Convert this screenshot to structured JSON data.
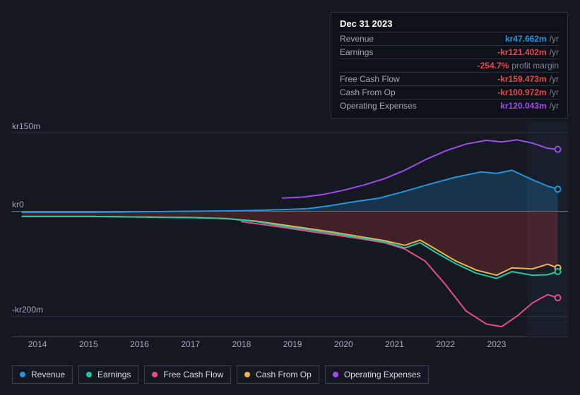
{
  "colors": {
    "background": "#131821",
    "tooltip_bg": "#0e1117",
    "border": "#2b3242",
    "grid": "#3a4254",
    "text_muted": "#a0a8b8",
    "revenue": "#2394df",
    "earnings": "#20c9a5",
    "fcf": "#e94a8a",
    "cfo": "#f0b44a",
    "opex": "#a04af0",
    "negative": "#e8474c",
    "area_blue": "#2394df",
    "area_red": "#b83a3a"
  },
  "tooltip": {
    "date": "Dec 31 2023",
    "rows": [
      {
        "label": "Revenue",
        "value": "kr47.662m",
        "color": "#2394df",
        "suffix": "/yr"
      },
      {
        "label": "Earnings",
        "value": "-kr121.402m",
        "color": "#e8474c",
        "suffix": "/yr"
      },
      {
        "label": "",
        "value": "-254.7%",
        "color": "#e8474c",
        "suffix": "profit margin"
      },
      {
        "label": "Free Cash Flow",
        "value": "-kr159.473m",
        "color": "#e8474c",
        "suffix": "/yr"
      },
      {
        "label": "Cash From Op",
        "value": "-kr100.972m",
        "color": "#e8474c",
        "suffix": "/yr"
      },
      {
        "label": "Operating Expenses",
        "value": "kr120.043m",
        "color": "#a04af0",
        "suffix": "/yr"
      }
    ]
  },
  "chart": {
    "type": "line",
    "ylim": [
      -240,
      170
    ],
    "yticks": [
      {
        "v": 150,
        "label": "kr150m"
      },
      {
        "v": 0,
        "label": "kr0"
      },
      {
        "v": -200,
        "label": "-kr200m"
      }
    ],
    "xlim": [
      2013.5,
      2024.4
    ],
    "xticks": [
      2014,
      2015,
      2016,
      2017,
      2018,
      2019,
      2020,
      2021,
      2022,
      2023
    ],
    "shade_from": 2023.6,
    "marker_x": 2024.2,
    "series": {
      "revenue": {
        "color": "#2394df",
        "width": 2,
        "points": [
          [
            2013.7,
            -2
          ],
          [
            2015,
            -2
          ],
          [
            2016,
            -1
          ],
          [
            2017,
            0
          ],
          [
            2018,
            1
          ],
          [
            2018.8,
            3
          ],
          [
            2019.3,
            5
          ],
          [
            2019.7,
            10
          ],
          [
            2020.2,
            18
          ],
          [
            2020.7,
            25
          ],
          [
            2021.2,
            38
          ],
          [
            2021.7,
            52
          ],
          [
            2022.2,
            65
          ],
          [
            2022.7,
            75
          ],
          [
            2023,
            72
          ],
          [
            2023.3,
            78
          ],
          [
            2023.7,
            60
          ],
          [
            2024,
            48
          ],
          [
            2024.2,
            42
          ]
        ]
      },
      "earnings": {
        "color": "#20c9a5",
        "width": 2,
        "points": [
          [
            2013.7,
            -10
          ],
          [
            2015,
            -10
          ],
          [
            2016,
            -11
          ],
          [
            2017,
            -12
          ],
          [
            2017.7,
            -14
          ],
          [
            2018.3,
            -20
          ],
          [
            2018.8,
            -28
          ],
          [
            2019.3,
            -35
          ],
          [
            2019.8,
            -42
          ],
          [
            2020.3,
            -50
          ],
          [
            2020.8,
            -58
          ],
          [
            2021.2,
            -70
          ],
          [
            2021.5,
            -60
          ],
          [
            2021.8,
            -78
          ],
          [
            2022.2,
            -100
          ],
          [
            2022.6,
            -118
          ],
          [
            2023,
            -128
          ],
          [
            2023.3,
            -115
          ],
          [
            2023.7,
            -122
          ],
          [
            2024,
            -121
          ],
          [
            2024.2,
            -115
          ]
        ]
      },
      "fcf": {
        "color": "#e94a8a",
        "width": 2,
        "points": [
          [
            2018,
            -20
          ],
          [
            2018.4,
            -25
          ],
          [
            2018.9,
            -32
          ],
          [
            2019.3,
            -38
          ],
          [
            2019.8,
            -45
          ],
          [
            2020.3,
            -52
          ],
          [
            2020.8,
            -60
          ],
          [
            2021.2,
            -72
          ],
          [
            2021.6,
            -95
          ],
          [
            2022,
            -140
          ],
          [
            2022.4,
            -190
          ],
          [
            2022.8,
            -215
          ],
          [
            2023.1,
            -220
          ],
          [
            2023.4,
            -200
          ],
          [
            2023.7,
            -175
          ],
          [
            2024,
            -159
          ],
          [
            2024.2,
            -165
          ]
        ]
      },
      "cfo": {
        "color": "#f0b44a",
        "width": 2,
        "points": [
          [
            2013.7,
            -10
          ],
          [
            2015,
            -10
          ],
          [
            2016,
            -11
          ],
          [
            2017,
            -12
          ],
          [
            2017.7,
            -14
          ],
          [
            2018.3,
            -19
          ],
          [
            2018.8,
            -26
          ],
          [
            2019.3,
            -33
          ],
          [
            2019.8,
            -40
          ],
          [
            2020.3,
            -48
          ],
          [
            2020.8,
            -56
          ],
          [
            2021.2,
            -65
          ],
          [
            2021.5,
            -55
          ],
          [
            2021.8,
            -72
          ],
          [
            2022.2,
            -95
          ],
          [
            2022.6,
            -112
          ],
          [
            2023,
            -122
          ],
          [
            2023.3,
            -108
          ],
          [
            2023.7,
            -110
          ],
          [
            2024,
            -101
          ],
          [
            2024.2,
            -108
          ]
        ]
      },
      "opex": {
        "color": "#a04af0",
        "width": 2,
        "points": [
          [
            2018.8,
            25
          ],
          [
            2019.2,
            27
          ],
          [
            2019.6,
            32
          ],
          [
            2020,
            40
          ],
          [
            2020.4,
            50
          ],
          [
            2020.8,
            62
          ],
          [
            2021.2,
            78
          ],
          [
            2021.6,
            98
          ],
          [
            2022,
            115
          ],
          [
            2022.4,
            128
          ],
          [
            2022.8,
            135
          ],
          [
            2023.1,
            132
          ],
          [
            2023.4,
            136
          ],
          [
            2023.7,
            130
          ],
          [
            2024,
            120
          ],
          [
            2024.2,
            118
          ]
        ]
      }
    },
    "end_markers": [
      {
        "color": "#a04af0",
        "v": 118
      },
      {
        "color": "#2394df",
        "v": 42
      },
      {
        "color": "#f0b44a",
        "v": -108
      },
      {
        "color": "#20c9a5",
        "v": -115
      },
      {
        "color": "#e94a8a",
        "v": -165
      }
    ]
  },
  "legend": [
    {
      "label": "Revenue",
      "color": "#2394df"
    },
    {
      "label": "Earnings",
      "color": "#20c9a5"
    },
    {
      "label": "Free Cash Flow",
      "color": "#e94a8a"
    },
    {
      "label": "Cash From Op",
      "color": "#f0b44a"
    },
    {
      "label": "Operating Expenses",
      "color": "#a04af0"
    }
  ]
}
